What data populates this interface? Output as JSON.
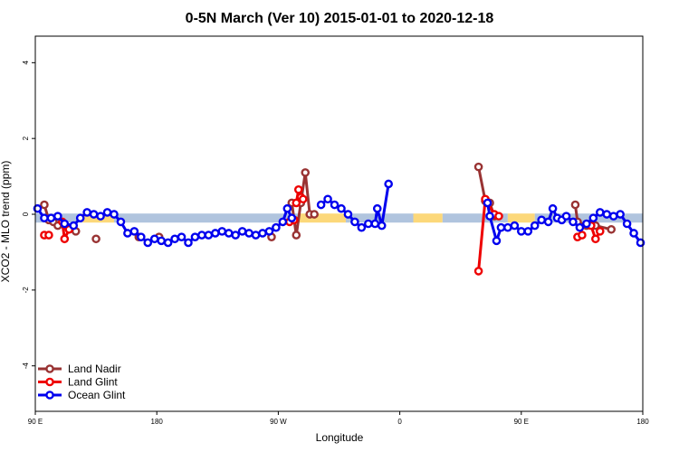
{
  "chart_data": {
    "type": "line",
    "title": "0-5N March (Ver 10)   2015-01-01 to 2020-12-18",
    "xlabel": "Longitude",
    "ylabel": "XCO2 - MLO trend (ppm)",
    "xlim": [
      -90,
      180
    ],
    "ylim": [
      -5.2,
      4.7
    ],
    "x_ticks": [
      {
        "value": -90,
        "label": "90 E"
      },
      {
        "value": -36,
        "label": "180"
      },
      {
        "value": 18,
        "label": "90 W"
      },
      {
        "value": 72,
        "label": "0"
      },
      {
        "value": 126,
        "label": "90 E"
      },
      {
        "value": 180,
        "label": "180"
      }
    ],
    "y_ticks": [
      -4,
      -2,
      0,
      2,
      4
    ],
    "legend_position": "bottom-left",
    "background_band": {
      "y": -0.1,
      "segments": [
        {
          "x0": -90,
          "x1": -69,
          "color": "#b0c4de"
        },
        {
          "x0": -69,
          "x1": -55,
          "color": "#fcd87a"
        },
        {
          "x0": -55,
          "x1": 27,
          "color": "#b0c4de"
        },
        {
          "x0": 27,
          "x1": 48,
          "color": "#fcd87a"
        },
        {
          "x0": 48,
          "x1": 78,
          "color": "#b0c4de"
        },
        {
          "x0": 78,
          "x1": 91,
          "color": "#fcd87a"
        },
        {
          "x0": 91,
          "x1": 120,
          "color": "#b0c4de"
        },
        {
          "x0": 120,
          "x1": 132,
          "color": "#fcd87a"
        },
        {
          "x0": 132,
          "x1": 180,
          "color": "#b0c4de"
        }
      ]
    },
    "series": [
      {
        "name": "Land Nadir",
        "color": "#993333",
        "segments": [
          [
            [
              -86,
              0.25
            ],
            [
              -84,
              -0.15
            ],
            [
              -82,
              -0.2
            ],
            [
              -80,
              -0.3
            ],
            [
              -72,
              -0.45
            ]
          ],
          [
            [
              -63,
              -0.65
            ]
          ],
          [
            [
              -44,
              -0.6
            ]
          ],
          [
            [
              -35,
              -0.6
            ]
          ],
          [
            [
              15,
              -0.6
            ]
          ],
          [
            [
              24,
              0.3
            ],
            [
              26,
              -0.55
            ],
            [
              28,
              0.3
            ],
            [
              30,
              1.1
            ],
            [
              32,
              0.0
            ],
            [
              34,
              0.0
            ]
          ],
          [
            [
              107,
              1.25
            ],
            [
              110,
              0.35
            ],
            [
              112,
              0.3
            ],
            [
              114,
              -0.05
            ]
          ],
          [
            [
              150,
              0.25
            ],
            [
              151,
              -0.2
            ],
            [
              155,
              -0.3
            ],
            [
              159,
              -0.3
            ],
            [
              166,
              -0.4
            ]
          ]
        ]
      },
      {
        "name": "Land Glint",
        "color": "#ee0000",
        "segments": [
          [
            [
              -86,
              -0.55
            ],
            [
              -84,
              -0.55
            ]
          ],
          [
            [
              -78,
              -0.2
            ],
            [
              -77,
              -0.65
            ],
            [
              -75,
              -0.4
            ]
          ],
          [
            [
              23,
              -0.2
            ],
            [
              25,
              -0.15
            ]
          ],
          [
            [
              26,
              0.3
            ],
            [
              27,
              0.65
            ],
            [
              28,
              0.45
            ],
            [
              29,
              0.4
            ]
          ],
          [
            [
              107,
              -1.5
            ],
            [
              110,
              0.4
            ],
            [
              114,
              0.0
            ],
            [
              116,
              -0.05
            ]
          ],
          [
            [
              151,
              -0.6
            ],
            [
              153,
              -0.55
            ]
          ],
          [
            [
              157,
              -0.3
            ],
            [
              159,
              -0.65
            ],
            [
              161,
              -0.45
            ]
          ]
        ]
      },
      {
        "name": "Ocean Glint",
        "color": "#0000ee",
        "segments": [
          [
            [
              -89,
              0.15
            ],
            [
              -86,
              -0.1
            ],
            [
              -83,
              -0.1
            ],
            [
              -80,
              -0.05
            ],
            [
              -77,
              -0.25
            ],
            [
              -73,
              -0.3
            ],
            [
              -70,
              -0.1
            ],
            [
              -67,
              0.05
            ],
            [
              -64,
              0.0
            ],
            [
              -61,
              -0.05
            ],
            [
              -58,
              0.05
            ],
            [
              -55,
              0.0
            ],
            [
              -52,
              -0.2
            ],
            [
              -49,
              -0.5
            ],
            [
              -46,
              -0.45
            ],
            [
              -43,
              -0.6
            ],
            [
              -40,
              -0.75
            ],
            [
              -37,
              -0.65
            ],
            [
              -34,
              -0.7
            ],
            [
              -31,
              -0.75
            ],
            [
              -28,
              -0.65
            ],
            [
              -25,
              -0.6
            ],
            [
              -22,
              -0.75
            ],
            [
              -19,
              -0.6
            ],
            [
              -16,
              -0.55
            ],
            [
              -13,
              -0.55
            ],
            [
              -10,
              -0.5
            ],
            [
              -7,
              -0.45
            ],
            [
              -4,
              -0.5
            ],
            [
              -1,
              -0.55
            ],
            [
              2,
              -0.45
            ],
            [
              5,
              -0.5
            ],
            [
              8,
              -0.55
            ],
            [
              11,
              -0.5
            ],
            [
              14,
              -0.45
            ],
            [
              17,
              -0.35
            ],
            [
              20,
              -0.2
            ],
            [
              22,
              0.15
            ],
            [
              24,
              -0.1
            ]
          ],
          [
            [
              37,
              0.25
            ],
            [
              40,
              0.4
            ],
            [
              43,
              0.25
            ],
            [
              46,
              0.15
            ],
            [
              49,
              0.0
            ],
            [
              52,
              -0.2
            ],
            [
              55,
              -0.35
            ],
            [
              58,
              -0.25
            ],
            [
              61,
              -0.25
            ],
            [
              62,
              0.15
            ],
            [
              64,
              -0.3
            ],
            [
              67,
              0.8
            ]
          ],
          [
            [
              111,
              0.3
            ],
            [
              112,
              -0.05
            ],
            [
              115,
              -0.7
            ],
            [
              117,
              -0.35
            ],
            [
              120,
              -0.35
            ],
            [
              123,
              -0.3
            ],
            [
              126,
              -0.45
            ],
            [
              129,
              -0.45
            ],
            [
              132,
              -0.3
            ],
            [
              135,
              -0.15
            ],
            [
              138,
              -0.2
            ],
            [
              140,
              0.15
            ],
            [
              142,
              -0.1
            ],
            [
              144,
              -0.15
            ],
            [
              146,
              -0.05
            ],
            [
              149,
              -0.2
            ],
            [
              152,
              -0.35
            ],
            [
              155,
              -0.25
            ],
            [
              158,
              -0.1
            ],
            [
              161,
              0.05
            ],
            [
              164,
              0.0
            ],
            [
              167,
              -0.05
            ],
            [
              170,
              0.0
            ],
            [
              173,
              -0.25
            ],
            [
              176,
              -0.5
            ],
            [
              179,
              -0.75
            ]
          ]
        ]
      }
    ]
  }
}
